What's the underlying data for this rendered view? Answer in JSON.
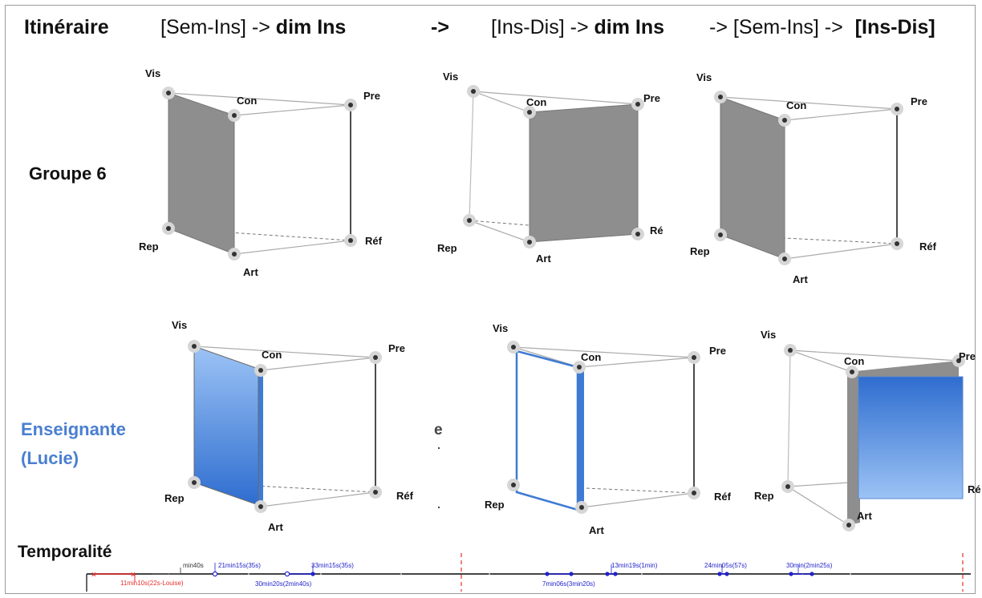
{
  "header": {
    "label": "Itinéraire",
    "step1_plain": "[Sem-Ins] ->",
    "step1_bold": "dim Ins",
    "arrow1": "->",
    "step2_plain": "[Ins-Dis] ->",
    "step2_bold": "dim Ins",
    "step3_plain": "-> [Sem-Ins] ->",
    "step3_bold": "[Ins-Dis]"
  },
  "rows": {
    "group": "Groupe 6",
    "teacher_line1": "Enseignante",
    "teacher_line2": "(Lucie)"
  },
  "stray_char": "e",
  "vertices": {
    "vis": "Vis",
    "con": "Con",
    "pre": "Pre",
    "rep": "Rep",
    "art": "Art",
    "ref": "Réf",
    "ref_cut": "Ré",
    "pre_cut": "Pre"
  },
  "timeline": {
    "title": "Temporalité",
    "red_labels": [
      "11min10s(22s-Louise)"
    ],
    "gray_labels": [
      "min40s"
    ],
    "blue_labels": [
      "21min15s(35s)",
      "30min20s(2min40s)",
      "33min15s(35s)",
      "7min06s(3min20s)",
      "13min19s(1min)",
      "24min05s(57s)",
      "30min(2min25s)"
    ]
  },
  "colors": {
    "panel_gray": "#8e8e8e",
    "panel_blue_top": "#8fbaf2",
    "panel_blue_bottom": "#2f6fd0",
    "teacher_text": "#4a7fd0",
    "timeline_blue": "#2222cc",
    "timeline_red": "#e53030"
  }
}
